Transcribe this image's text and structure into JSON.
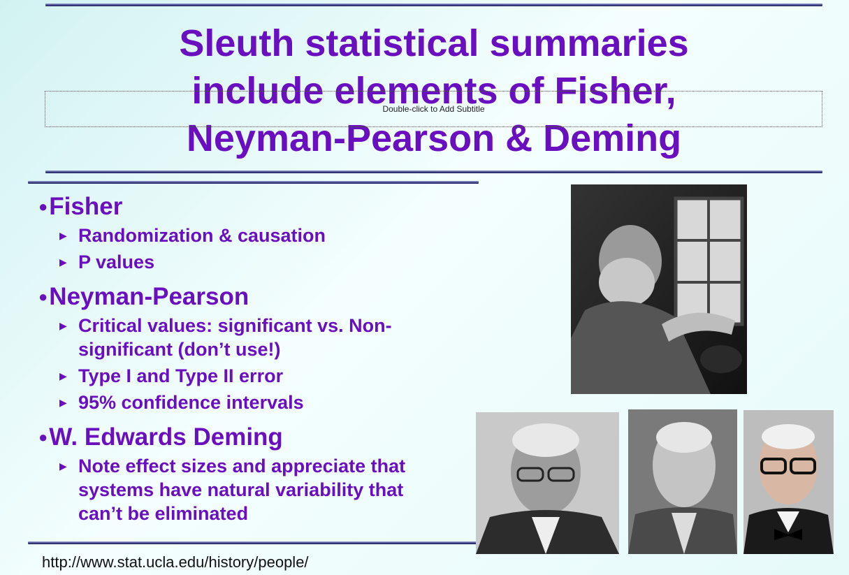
{
  "slide": {
    "title_lines": [
      "Sleuth statistical summaries",
      "include elements of Fisher,",
      "Neyman-Pearson & Deming"
    ],
    "subtitle_placeholder": "Double-click to Add Subtitle",
    "sections": [
      {
        "heading": "Fisher",
        "items": [
          "Randomization & causation",
          "P values"
        ]
      },
      {
        "heading": "Neyman-Pearson",
        "items": [
          "Critical values: significant vs. Non-significant (don’t use!)",
          "Type I and Type II error",
          "95% confidence intervals"
        ]
      },
      {
        "heading": "W. Edwards Deming",
        "items": [
          "Note effect sizes and appreciate that systems have natural variability that can’t be eliminated"
        ]
      }
    ],
    "footer_url": "http://www.stat.ucla.edu/history/people/"
  },
  "colors": {
    "accent": "#6a0fc0",
    "rule": "#2b2d70",
    "background": "#e6fafa"
  },
  "photos": [
    "fisher-photo",
    "neyman-photo",
    "pearson-photo",
    "deming-photo"
  ]
}
